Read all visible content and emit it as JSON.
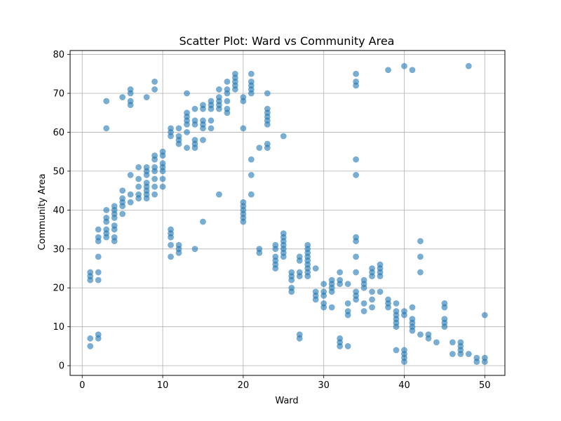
{
  "chart_data": {
    "type": "scatter",
    "title": "Scatter Plot: Ward vs Community Area",
    "xlabel": "Ward",
    "ylabel": "Community Area",
    "xlim": [
      -1.5,
      52.5
    ],
    "ylim": [
      -2.5,
      81
    ],
    "xticks": [
      0,
      10,
      20,
      30,
      40,
      50
    ],
    "yticks": [
      0,
      10,
      20,
      30,
      40,
      50,
      60,
      70,
      80
    ],
    "grid": true,
    "colors": {
      "point": "#1f77b4",
      "grid": "#b0b0b0",
      "axes": "#000000"
    },
    "series": [
      {
        "points": [
          [
            1,
            24
          ],
          [
            1,
            23
          ],
          [
            1,
            22
          ],
          [
            1,
            7
          ],
          [
            1,
            5
          ],
          [
            2,
            35
          ],
          [
            2,
            33
          ],
          [
            2,
            32
          ],
          [
            2,
            28
          ],
          [
            2,
            24
          ],
          [
            2,
            22
          ],
          [
            2,
            8
          ],
          [
            2,
            7
          ],
          [
            3,
            68
          ],
          [
            3,
            61
          ],
          [
            3,
            40
          ],
          [
            3,
            38
          ],
          [
            3,
            37
          ],
          [
            3,
            35
          ],
          [
            3,
            34
          ],
          [
            3,
            33
          ],
          [
            4,
            41
          ],
          [
            4,
            40
          ],
          [
            4,
            39
          ],
          [
            4,
            38
          ],
          [
            4,
            36
          ],
          [
            4,
            35
          ],
          [
            4,
            33
          ],
          [
            4,
            32
          ],
          [
            5,
            69
          ],
          [
            5,
            45
          ],
          [
            5,
            43
          ],
          [
            5,
            42
          ],
          [
            5,
            41
          ],
          [
            5,
            39
          ],
          [
            6,
            71
          ],
          [
            6,
            70
          ],
          [
            6,
            68
          ],
          [
            6,
            67
          ],
          [
            6,
            49
          ],
          [
            6,
            44
          ],
          [
            6,
            42
          ],
          [
            7,
            51
          ],
          [
            7,
            48
          ],
          [
            7,
            46
          ],
          [
            7,
            44
          ],
          [
            7,
            43
          ],
          [
            8,
            69
          ],
          [
            8,
            51
          ],
          [
            8,
            50
          ],
          [
            8,
            49
          ],
          [
            8,
            47
          ],
          [
            8,
            46
          ],
          [
            8,
            45
          ],
          [
            8,
            44
          ],
          [
            8,
            43
          ],
          [
            9,
            73
          ],
          [
            9,
            71
          ],
          [
            9,
            54
          ],
          [
            9,
            53
          ],
          [
            9,
            51
          ],
          [
            9,
            50
          ],
          [
            9,
            48
          ],
          [
            9,
            46
          ],
          [
            9,
            44
          ],
          [
            10,
            55
          ],
          [
            10,
            54
          ],
          [
            10,
            52
          ],
          [
            10,
            51
          ],
          [
            10,
            50
          ],
          [
            10,
            48
          ],
          [
            10,
            46
          ],
          [
            11,
            61
          ],
          [
            11,
            60
          ],
          [
            11,
            59
          ],
          [
            11,
            35
          ],
          [
            11,
            34
          ],
          [
            11,
            33
          ],
          [
            11,
            31
          ],
          [
            11,
            28
          ],
          [
            12,
            61
          ],
          [
            12,
            59
          ],
          [
            12,
            58
          ],
          [
            12,
            57
          ],
          [
            12,
            31
          ],
          [
            12,
            30
          ],
          [
            12,
            29
          ],
          [
            13,
            70
          ],
          [
            13,
            65
          ],
          [
            13,
            64
          ],
          [
            13,
            63
          ],
          [
            13,
            62
          ],
          [
            13,
            60
          ],
          [
            13,
            56
          ],
          [
            14,
            66
          ],
          [
            14,
            63
          ],
          [
            14,
            62
          ],
          [
            14,
            58
          ],
          [
            14,
            57
          ],
          [
            14,
            56
          ],
          [
            14,
            30
          ],
          [
            15,
            67
          ],
          [
            15,
            66
          ],
          [
            15,
            63
          ],
          [
            15,
            62
          ],
          [
            15,
            61
          ],
          [
            15,
            58
          ],
          [
            15,
            37
          ],
          [
            16,
            68
          ],
          [
            16,
            67
          ],
          [
            16,
            66
          ],
          [
            16,
            63
          ],
          [
            16,
            61
          ],
          [
            17,
            71
          ],
          [
            17,
            69
          ],
          [
            17,
            68
          ],
          [
            17,
            67
          ],
          [
            17,
            66
          ],
          [
            17,
            44
          ],
          [
            18,
            73
          ],
          [
            18,
            71
          ],
          [
            18,
            70
          ],
          [
            18,
            68
          ],
          [
            18,
            66
          ],
          [
            18,
            65
          ],
          [
            19,
            75
          ],
          [
            19,
            74
          ],
          [
            19,
            73
          ],
          [
            19,
            72
          ],
          [
            19,
            71
          ],
          [
            20,
            69
          ],
          [
            20,
            68
          ],
          [
            20,
            61
          ],
          [
            20,
            42
          ],
          [
            20,
            41
          ],
          [
            20,
            40
          ],
          [
            20,
            39
          ],
          [
            20,
            38
          ],
          [
            20,
            37
          ],
          [
            21,
            75
          ],
          [
            21,
            73
          ],
          [
            21,
            72
          ],
          [
            21,
            71
          ],
          [
            21,
            70
          ],
          [
            21,
            53
          ],
          [
            21,
            49
          ],
          [
            21,
            44
          ],
          [
            22,
            56
          ],
          [
            22,
            30
          ],
          [
            22,
            29
          ],
          [
            23,
            70
          ],
          [
            23,
            66
          ],
          [
            23,
            65
          ],
          [
            23,
            64
          ],
          [
            23,
            63
          ],
          [
            23,
            62
          ],
          [
            23,
            57
          ],
          [
            23,
            56
          ],
          [
            24,
            31
          ],
          [
            24,
            30
          ],
          [
            24,
            28
          ],
          [
            24,
            27
          ],
          [
            24,
            26
          ],
          [
            24,
            25
          ],
          [
            25,
            59
          ],
          [
            25,
            34
          ],
          [
            25,
            33
          ],
          [
            25,
            32
          ],
          [
            25,
            31
          ],
          [
            25,
            30
          ],
          [
            25,
            29
          ],
          [
            25,
            28
          ],
          [
            26,
            24
          ],
          [
            26,
            23
          ],
          [
            26,
            22
          ],
          [
            26,
            20
          ],
          [
            26,
            19
          ],
          [
            27,
            28
          ],
          [
            27,
            27
          ],
          [
            27,
            24
          ],
          [
            27,
            23
          ],
          [
            27,
            8
          ],
          [
            27,
            7
          ],
          [
            28,
            31
          ],
          [
            28,
            30
          ],
          [
            28,
            29
          ],
          [
            28,
            28
          ],
          [
            28,
            27
          ],
          [
            28,
            26
          ],
          [
            28,
            25
          ],
          [
            28,
            24
          ],
          [
            28,
            23
          ],
          [
            29,
            25
          ],
          [
            29,
            19
          ],
          [
            29,
            18
          ],
          [
            29,
            17
          ],
          [
            30,
            21
          ],
          [
            30,
            19
          ],
          [
            30,
            18
          ],
          [
            30,
            16
          ],
          [
            30,
            15
          ],
          [
            31,
            22
          ],
          [
            31,
            21
          ],
          [
            31,
            20
          ],
          [
            31,
            19
          ],
          [
            31,
            15
          ],
          [
            32,
            24
          ],
          [
            32,
            22
          ],
          [
            32,
            21
          ],
          [
            32,
            7
          ],
          [
            32,
            6
          ],
          [
            32,
            5
          ],
          [
            33,
            21
          ],
          [
            33,
            16
          ],
          [
            33,
            14
          ],
          [
            33,
            13
          ],
          [
            33,
            5
          ],
          [
            34,
            75
          ],
          [
            34,
            73
          ],
          [
            34,
            72
          ],
          [
            34,
            53
          ],
          [
            34,
            49
          ],
          [
            34,
            33
          ],
          [
            34,
            32
          ],
          [
            34,
            28
          ],
          [
            34,
            24
          ],
          [
            34,
            19
          ],
          [
            34,
            18
          ],
          [
            34,
            17
          ],
          [
            35,
            22
          ],
          [
            35,
            21
          ],
          [
            35,
            20
          ],
          [
            35,
            16
          ],
          [
            35,
            14
          ],
          [
            36,
            25
          ],
          [
            36,
            24
          ],
          [
            36,
            23
          ],
          [
            36,
            19
          ],
          [
            36,
            17
          ],
          [
            36,
            15
          ],
          [
            37,
            26
          ],
          [
            37,
            25
          ],
          [
            37,
            24
          ],
          [
            37,
            23
          ],
          [
            37,
            19
          ],
          [
            38,
            76
          ],
          [
            38,
            17
          ],
          [
            38,
            16
          ],
          [
            38,
            15
          ],
          [
            39,
            16
          ],
          [
            39,
            14
          ],
          [
            39,
            13
          ],
          [
            39,
            12
          ],
          [
            39,
            11
          ],
          [
            39,
            10
          ],
          [
            39,
            4
          ],
          [
            40,
            77
          ],
          [
            40,
            14
          ],
          [
            40,
            13
          ],
          [
            40,
            4
          ],
          [
            40,
            3
          ],
          [
            40,
            2
          ],
          [
            40,
            1
          ],
          [
            41,
            76
          ],
          [
            41,
            15
          ],
          [
            41,
            12
          ],
          [
            41,
            11
          ],
          [
            41,
            10
          ],
          [
            41,
            9
          ],
          [
            42,
            32
          ],
          [
            42,
            28
          ],
          [
            42,
            24
          ],
          [
            42,
            8
          ],
          [
            43,
            8
          ],
          [
            43,
            7
          ],
          [
            44,
            6
          ],
          [
            45,
            16
          ],
          [
            45,
            15
          ],
          [
            45,
            12
          ],
          [
            45,
            11
          ],
          [
            45,
            10
          ],
          [
            46,
            6
          ],
          [
            46,
            3
          ],
          [
            47,
            6
          ],
          [
            47,
            5
          ],
          [
            47,
            4
          ],
          [
            47,
            3
          ],
          [
            48,
            77
          ],
          [
            48,
            3
          ],
          [
            49,
            2
          ],
          [
            49,
            1
          ],
          [
            50,
            13
          ],
          [
            50,
            2
          ],
          [
            50,
            1
          ]
        ]
      }
    ]
  }
}
